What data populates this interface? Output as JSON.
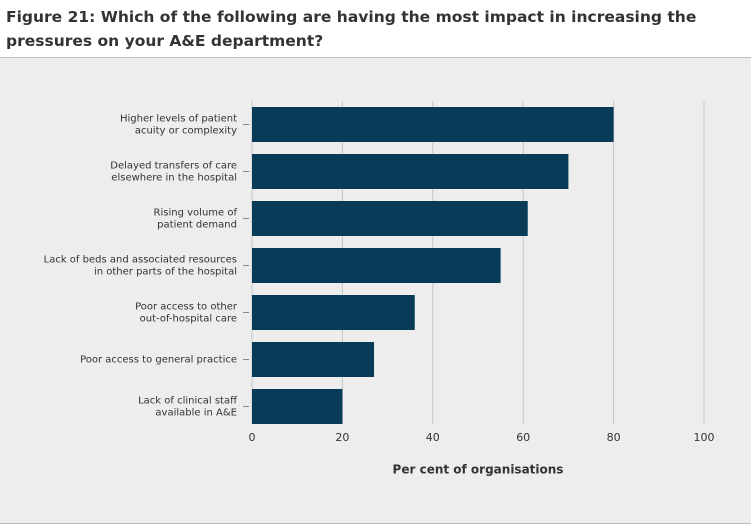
{
  "chart_data": {
    "type": "barh",
    "title": "Figure 21: Which of the following are having the most impact in increasing the pressures on your A&E department?",
    "categories": [
      "Higher levels of patient\nacuity or complexity",
      "Delayed transfers of care\nelsewhere in the hospital",
      "Rising volume of\npatient demand",
      "Lack of beds and associated resources\nin other parts of the hospital",
      "Poor access to other\nout-of-hospital care",
      "Poor access to general practice",
      "Lack of clinical staff\navailable in A&E"
    ],
    "values": [
      80,
      70,
      61,
      55,
      36,
      27,
      20
    ],
    "color": "#073b58",
    "xlabel": "Per cent of organisations",
    "xlim": [
      0,
      100
    ],
    "xticks": [
      0,
      20,
      40,
      60,
      80,
      100
    ],
    "grid": true
  }
}
